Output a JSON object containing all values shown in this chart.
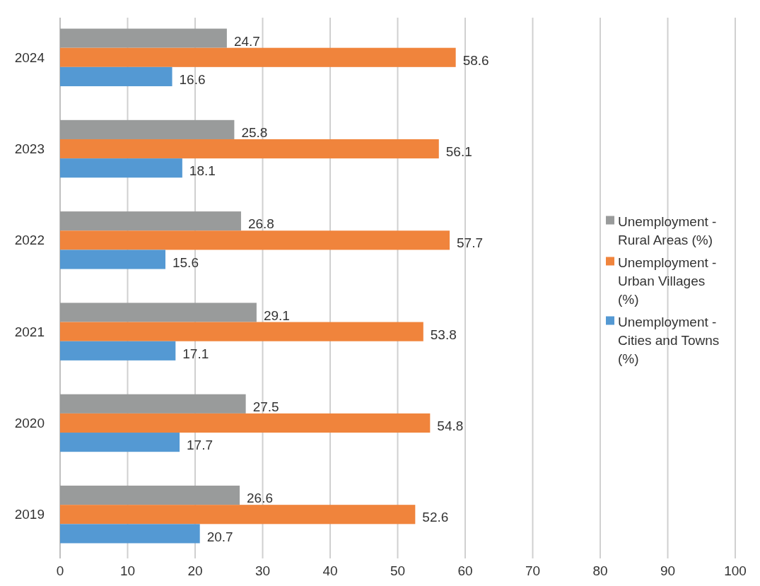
{
  "chart_data": {
    "type": "bar",
    "orientation": "horizontal",
    "categories": [
      "2024",
      "2023",
      "2022",
      "2021",
      "2020",
      "2019"
    ],
    "series": [
      {
        "name": "Unemployment - Rural Areas (%)",
        "color": "#999b9b",
        "values": [
          24.7,
          25.8,
          26.8,
          29.1,
          27.5,
          26.6
        ]
      },
      {
        "name": "Unemployment - Urban Villages (%)",
        "color": "#f0843c",
        "values": [
          58.6,
          56.1,
          57.7,
          53.8,
          54.8,
          52.6
        ]
      },
      {
        "name": "Unemployment - Cities and Towns (%)",
        "color": "#5499d3",
        "values": [
          16.6,
          18.1,
          15.6,
          17.1,
          17.7,
          20.7
        ]
      }
    ],
    "xlim": [
      0,
      100
    ],
    "xticks": [
      0,
      10,
      20,
      30,
      40,
      50,
      60,
      70,
      80,
      90,
      100
    ],
    "grid": "x",
    "legend": "right",
    "data_labels": true
  }
}
